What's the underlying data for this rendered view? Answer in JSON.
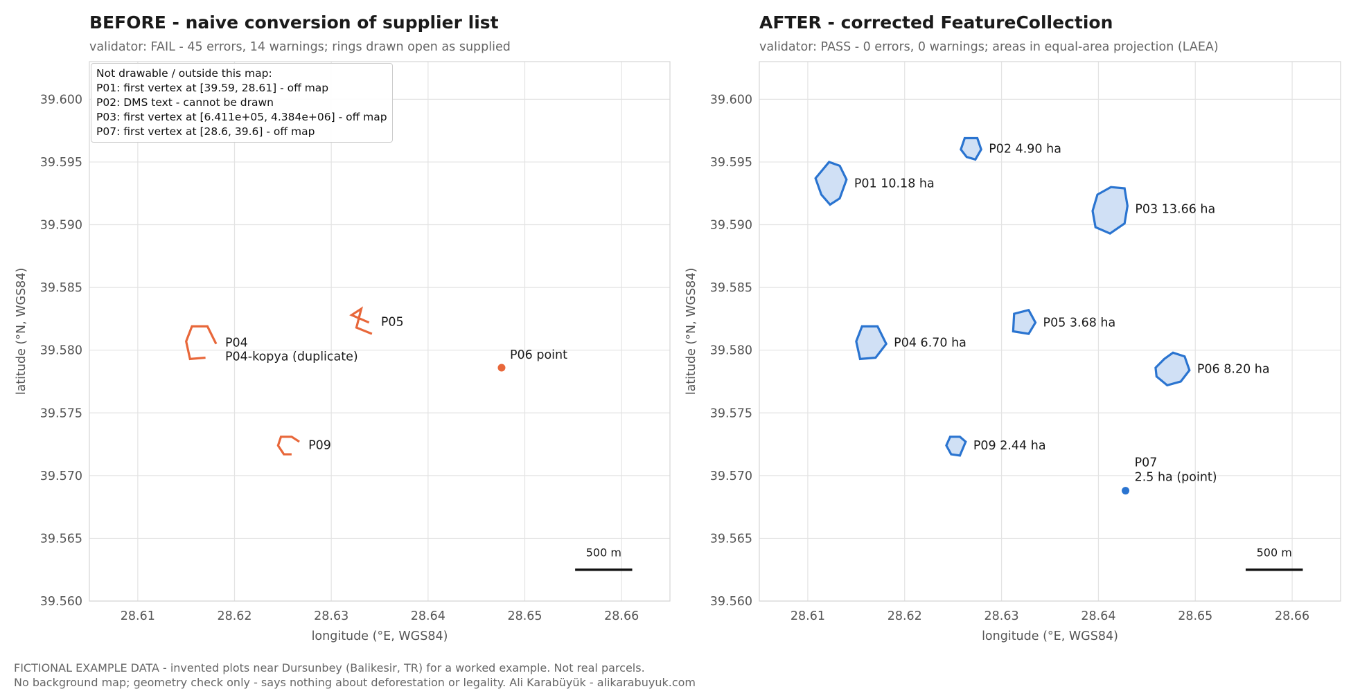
{
  "chart_data": [
    {
      "type": "map",
      "title": "BEFORE - naive conversion of supplier list",
      "subtitle": "validator: FAIL - 45 errors, 14 warnings; rings drawn open as supplied",
      "xlabel": "longitude (°E, WGS84)",
      "ylabel": "latitude (°N, WGS84)",
      "xlim": [
        28.605,
        28.665
      ],
      "ylim": [
        39.56,
        39.603
      ],
      "xticks": [
        "28.61",
        "28.62",
        "28.63",
        "28.64",
        "28.65",
        "28.66"
      ],
      "yticks": [
        "39.560",
        "39.565",
        "39.570",
        "39.575",
        "39.580",
        "39.585",
        "39.590",
        "39.595",
        "39.600"
      ],
      "grid": true,
      "color": "#e8673a",
      "scale_bar": "500 m",
      "note": {
        "heading": "Not drawable / outside this map:",
        "lines": [
          "P01: first vertex at [39.59, 28.61] - off map",
          "P02: DMS text - cannot be drawn",
          "P03: first vertex at [6.411e+05, 4.384e+06] - off map",
          "P07: first vertex at [28.6, 39.6] - off map"
        ]
      },
      "features": [
        {
          "id": "P04",
          "kind": "open-ring",
          "label": "P04",
          "coords": [
            [
              28.6181,
              39.5805
            ],
            [
              28.6172,
              39.5819
            ],
            [
              28.6156,
              39.5819
            ],
            [
              28.615,
              39.5807
            ],
            [
              28.6154,
              39.5793
            ],
            [
              28.617,
              39.5794
            ]
          ]
        },
        {
          "id": "P04-kopya",
          "kind": "label-only",
          "label": "P04-kopya (duplicate)",
          "coords": [
            [
              28.6181,
              39.5795
            ]
          ]
        },
        {
          "id": "P05",
          "kind": "open-ring",
          "label": "P05",
          "coords": [
            [
              28.6339,
              39.5822
            ],
            [
              28.6321,
              39.5828
            ],
            [
              28.6331,
              39.5833
            ],
            [
              28.6326,
              39.5818
            ],
            [
              28.6342,
              39.5813
            ]
          ]
        },
        {
          "id": "P06",
          "kind": "point",
          "label": "P06 point",
          "coords": [
            [
              28.6476,
              39.5786
            ]
          ]
        },
        {
          "id": "P09",
          "kind": "open-ring",
          "label": "P09",
          "coords": [
            [
              28.6267,
              39.5727
            ],
            [
              28.6259,
              39.5731
            ],
            [
              28.6248,
              39.5731
            ],
            [
              28.6245,
              39.5724
            ],
            [
              28.6251,
              39.5717
            ],
            [
              28.6259,
              39.5717
            ]
          ]
        }
      ]
    },
    {
      "type": "map",
      "title": "AFTER - corrected FeatureCollection",
      "subtitle": "validator: PASS - 0 errors, 0 warnings; areas in equal-area projection (LAEA)",
      "xlabel": "longitude (°E, WGS84)",
      "ylabel": "latitude (°N, WGS84)",
      "xlim": [
        28.605,
        28.665
      ],
      "ylim": [
        39.56,
        39.603
      ],
      "xticks": [
        "28.61",
        "28.62",
        "28.63",
        "28.64",
        "28.65",
        "28.66"
      ],
      "yticks": [
        "39.560",
        "39.565",
        "39.570",
        "39.575",
        "39.580",
        "39.585",
        "39.590",
        "39.595",
        "39.600"
      ],
      "grid": true,
      "color": "#2a74d0",
      "fill": "#d0e0f5",
      "scale_bar": "500 m",
      "features": [
        {
          "id": "P01",
          "kind": "polygon",
          "label": "P01  10.18 ha",
          "coords": [
            [
              28.614,
              39.5936
            ],
            [
              28.6133,
              39.5947
            ],
            [
              28.6122,
              39.595
            ],
            [
              28.6108,
              39.5937
            ],
            [
              28.6114,
              39.5924
            ],
            [
              28.6123,
              39.5916
            ],
            [
              28.6133,
              39.5921
            ]
          ]
        },
        {
          "id": "P02",
          "kind": "polygon",
          "label": "P02  4.90 ha",
          "coords": [
            [
              28.6279,
              39.596
            ],
            [
              28.6275,
              39.5969
            ],
            [
              28.6262,
              39.5969
            ],
            [
              28.6258,
              39.596
            ],
            [
              28.6264,
              39.5954
            ],
            [
              28.6273,
              39.5952
            ]
          ]
        },
        {
          "id": "P03",
          "kind": "polygon",
          "label": "P03  13.66 ha",
          "coords": [
            [
              28.6413,
              39.593
            ],
            [
              28.6427,
              39.5929
            ],
            [
              28.643,
              39.5915
            ],
            [
              28.6427,
              39.5901
            ],
            [
              28.6412,
              39.5893
            ],
            [
              28.6397,
              39.5898
            ],
            [
              28.6394,
              39.5911
            ],
            [
              28.6399,
              39.5924
            ]
          ]
        },
        {
          "id": "P04",
          "kind": "polygon",
          "label": "P04  6.70 ha",
          "coords": [
            [
              28.6181,
              39.5805
            ],
            [
              28.6172,
              39.5819
            ],
            [
              28.6156,
              39.5819
            ],
            [
              28.615,
              39.5807
            ],
            [
              28.6154,
              39.5793
            ],
            [
              28.617,
              39.5794
            ]
          ]
        },
        {
          "id": "P05",
          "kind": "polygon",
          "label": "P05  3.68 ha",
          "coords": [
            [
              28.6335,
              39.5822
            ],
            [
              28.6328,
              39.5832
            ],
            [
              28.6313,
              39.5829
            ],
            [
              28.6312,
              39.5815
            ],
            [
              28.6328,
              39.5813
            ]
          ]
        },
        {
          "id": "P06",
          "kind": "polygon",
          "label": "P06  8.20 ha",
          "coords": [
            [
              28.6489,
              39.5795
            ],
            [
              28.6477,
              39.5798
            ],
            [
              28.6468,
              39.5793
            ],
            [
              28.6459,
              39.5786
            ],
            [
              28.646,
              39.5779
            ],
            [
              28.6471,
              39.5772
            ],
            [
              28.6485,
              39.5775
            ],
            [
              28.6494,
              39.5784
            ]
          ]
        },
        {
          "id": "P09",
          "kind": "polygon",
          "label": "P09  2.44 ha",
          "coords": [
            [
              28.6263,
              39.5727
            ],
            [
              28.6257,
              39.5731
            ],
            [
              28.6247,
              39.5731
            ],
            [
              28.6243,
              39.5724
            ],
            [
              28.6248,
              39.5717
            ],
            [
              28.6257,
              39.5716
            ]
          ]
        },
        {
          "id": "P07",
          "kind": "point",
          "label": "P07",
          "label2": "2.5 ha (point)",
          "coords": [
            [
              28.6428,
              39.5688
            ]
          ]
        }
      ]
    }
  ],
  "footer": {
    "line1": "FICTIONAL EXAMPLE DATA - invented plots near Dursunbey (Balikesir, TR) for a worked example. Not real parcels.",
    "line2": "No background map; geometry check only - says nothing about deforestation or legality.  Ali Karabüyük - alikarabuyuk.com"
  }
}
